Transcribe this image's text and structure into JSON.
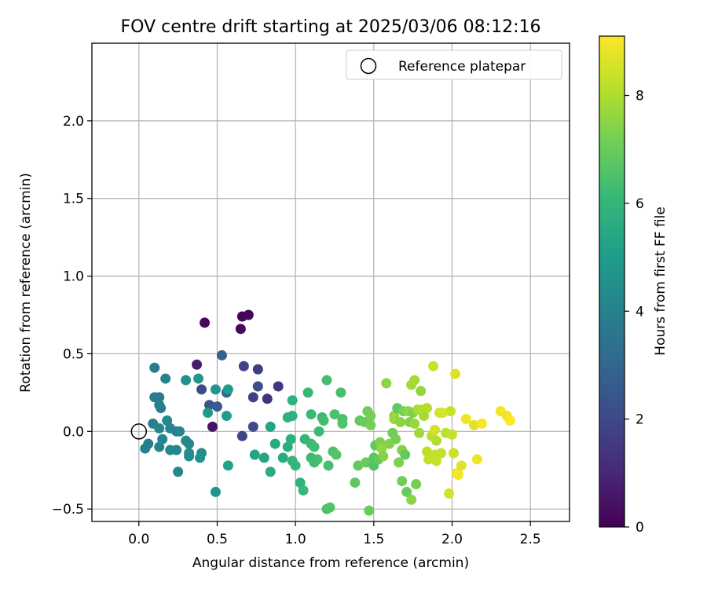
{
  "chart_data": {
    "type": "scatter",
    "title": "FOV centre drift starting at 2025/03/06 08:12:16",
    "xlabel": "Angular distance from reference (arcmin)",
    "ylabel": "Rotation from reference (arcmin)",
    "xlim": [
      -0.3,
      2.75
    ],
    "ylim": [
      -0.58,
      2.5
    ],
    "xticks": [
      0.0,
      0.5,
      1.0,
      1.5,
      2.0,
      2.5
    ],
    "xtick_labels": [
      "0.0",
      "0.5",
      "1.0",
      "1.5",
      "2.0",
      "2.5"
    ],
    "yticks": [
      -0.5,
      0.0,
      0.5,
      1.0,
      1.5,
      2.0
    ],
    "ytick_labels": [
      "−0.5",
      "0.0",
      "0.5",
      "1.0",
      "1.5",
      "2.0"
    ],
    "grid": true,
    "legend": {
      "position": "top-right",
      "entries": [
        "Reference platepar"
      ]
    },
    "reference": {
      "x": 0.0,
      "y": 0.0,
      "label": "Reference platepar"
    },
    "colorbar": {
      "label": "Hours from first FF file",
      "colormap": "viridis",
      "range": [
        0,
        9.1
      ],
      "ticks": [
        0,
        2,
        4,
        6,
        8
      ],
      "tick_labels": [
        "0",
        "2",
        "4",
        "6",
        "8"
      ]
    },
    "points": [
      {
        "x": 0.42,
        "y": 0.7,
        "h": 0.15
      },
      {
        "x": 0.66,
        "y": 0.74,
        "h": 0.1
      },
      {
        "x": 0.7,
        "y": 0.75,
        "h": 0.1
      },
      {
        "x": 0.65,
        "y": 0.66,
        "h": 0.2
      },
      {
        "x": 0.47,
        "y": 0.03,
        "h": 0.5
      },
      {
        "x": 0.37,
        "y": 0.43,
        "h": 0.7
      },
      {
        "x": 0.76,
        "y": 0.4,
        "h": 1.6
      },
      {
        "x": 0.67,
        "y": 0.42,
        "h": 1.8
      },
      {
        "x": 0.89,
        "y": 0.29,
        "h": 1.5
      },
      {
        "x": 0.82,
        "y": 0.21,
        "h": 1.3
      },
      {
        "x": 0.73,
        "y": 0.22,
        "h": 1.7
      },
      {
        "x": 0.76,
        "y": 0.29,
        "h": 2.2
      },
      {
        "x": 0.4,
        "y": 0.27,
        "h": 2.0
      },
      {
        "x": 0.45,
        "y": 0.17,
        "h": 2.4
      },
      {
        "x": 0.5,
        "y": 0.16,
        "h": 2.6
      },
      {
        "x": 0.66,
        "y": -0.03,
        "h": 1.9
      },
      {
        "x": 0.73,
        "y": 0.03,
        "h": 2.1
      },
      {
        "x": 0.53,
        "y": 0.49,
        "h": 2.8
      },
      {
        "x": 0.56,
        "y": 0.25,
        "h": 3.0
      },
      {
        "x": 0.1,
        "y": 0.41,
        "h": 3.8
      },
      {
        "x": 0.1,
        "y": 0.22,
        "h": 3.9
      },
      {
        "x": 0.13,
        "y": 0.22,
        "h": 3.7
      },
      {
        "x": 0.13,
        "y": 0.17,
        "h": 4.0
      },
      {
        "x": 0.14,
        "y": 0.15,
        "h": 3.9
      },
      {
        "x": 0.17,
        "y": 0.34,
        "h": 4.1
      },
      {
        "x": 0.09,
        "y": 0.05,
        "h": 4.0
      },
      {
        "x": 0.13,
        "y": 0.02,
        "h": 4.2
      },
      {
        "x": 0.18,
        "y": 0.07,
        "h": 4.3
      },
      {
        "x": 0.2,
        "y": 0.02,
        "h": 4.1
      },
      {
        "x": 0.24,
        "y": 0.0,
        "h": 4.0
      },
      {
        "x": 0.26,
        "y": 0.0,
        "h": 4.2
      },
      {
        "x": 0.06,
        "y": -0.08,
        "h": 3.9
      },
      {
        "x": 0.04,
        "y": -0.11,
        "h": 4.0
      },
      {
        "x": 0.13,
        "y": -0.1,
        "h": 4.1
      },
      {
        "x": 0.15,
        "y": -0.05,
        "h": 4.2
      },
      {
        "x": 0.2,
        "y": -0.12,
        "h": 4.3
      },
      {
        "x": 0.24,
        "y": -0.12,
        "h": 4.2
      },
      {
        "x": 0.3,
        "y": -0.06,
        "h": 4.4
      },
      {
        "x": 0.32,
        "y": -0.08,
        "h": 4.3
      },
      {
        "x": 0.32,
        "y": -0.14,
        "h": 4.5
      },
      {
        "x": 0.32,
        "y": -0.16,
        "h": 4.4
      },
      {
        "x": 0.25,
        "y": -0.26,
        "h": 4.2
      },
      {
        "x": 0.4,
        "y": -0.14,
        "h": 4.5
      },
      {
        "x": 0.39,
        "y": -0.17,
        "h": 4.6
      },
      {
        "x": 0.3,
        "y": 0.33,
        "h": 4.6
      },
      {
        "x": 0.38,
        "y": 0.34,
        "h": 4.8
      },
      {
        "x": 0.49,
        "y": 0.27,
        "h": 4.8
      },
      {
        "x": 0.57,
        "y": 0.27,
        "h": 5.0
      },
      {
        "x": 0.44,
        "y": 0.12,
        "h": 4.9
      },
      {
        "x": 0.56,
        "y": 0.1,
        "h": 5.1
      },
      {
        "x": 0.49,
        "y": -0.39,
        "h": 4.7
      },
      {
        "x": 0.57,
        "y": -0.22,
        "h": 5.2
      },
      {
        "x": 0.74,
        "y": -0.15,
        "h": 5.3
      },
      {
        "x": 0.8,
        "y": -0.17,
        "h": 5.4
      },
      {
        "x": 0.84,
        "y": 0.03,
        "h": 5.3
      },
      {
        "x": 0.87,
        "y": -0.08,
        "h": 5.5
      },
      {
        "x": 0.84,
        "y": -0.26,
        "h": 5.6
      },
      {
        "x": 0.92,
        "y": -0.17,
        "h": 5.6
      },
      {
        "x": 0.95,
        "y": -0.1,
        "h": 5.7
      },
      {
        "x": 0.97,
        "y": -0.05,
        "h": 5.8
      },
      {
        "x": 0.98,
        "y": 0.2,
        "h": 5.8
      },
      {
        "x": 0.95,
        "y": 0.09,
        "h": 5.9
      },
      {
        "x": 0.98,
        "y": 0.1,
        "h": 5.8
      },
      {
        "x": 0.98,
        "y": -0.19,
        "h": 6.0
      },
      {
        "x": 1.0,
        "y": -0.22,
        "h": 6.0
      },
      {
        "x": 1.03,
        "y": -0.33,
        "h": 5.9
      },
      {
        "x": 1.05,
        "y": -0.38,
        "h": 6.1
      },
      {
        "x": 1.06,
        "y": -0.05,
        "h": 6.0
      },
      {
        "x": 1.08,
        "y": 0.25,
        "h": 6.1
      },
      {
        "x": 1.1,
        "y": 0.11,
        "h": 6.2
      },
      {
        "x": 1.1,
        "y": -0.08,
        "h": 6.2
      },
      {
        "x": 1.12,
        "y": -0.1,
        "h": 6.3
      },
      {
        "x": 1.1,
        "y": -0.17,
        "h": 6.2
      },
      {
        "x": 1.12,
        "y": -0.2,
        "h": 6.3
      },
      {
        "x": 1.14,
        "y": -0.18,
        "h": 6.4
      },
      {
        "x": 1.15,
        "y": 0.0,
        "h": 6.2
      },
      {
        "x": 1.17,
        "y": 0.09,
        "h": 6.1
      },
      {
        "x": 1.18,
        "y": 0.07,
        "h": 6.3
      },
      {
        "x": 1.2,
        "y": 0.33,
        "h": 6.4
      },
      {
        "x": 1.21,
        "y": -0.22,
        "h": 6.4
      },
      {
        "x": 1.2,
        "y": -0.5,
        "h": 6.5
      },
      {
        "x": 1.22,
        "y": -0.49,
        "h": 6.6
      },
      {
        "x": 1.24,
        "y": -0.13,
        "h": 6.5
      },
      {
        "x": 1.25,
        "y": 0.11,
        "h": 6.5
      },
      {
        "x": 1.26,
        "y": -0.15,
        "h": 6.6
      },
      {
        "x": 1.29,
        "y": 0.25,
        "h": 6.4
      },
      {
        "x": 1.3,
        "y": 0.08,
        "h": 6.5
      },
      {
        "x": 1.3,
        "y": 0.05,
        "h": 6.6
      },
      {
        "x": 1.38,
        "y": -0.33,
        "h": 6.8
      },
      {
        "x": 1.4,
        "y": -0.22,
        "h": 6.9
      },
      {
        "x": 1.41,
        "y": 0.07,
        "h": 6.9
      },
      {
        "x": 1.44,
        "y": 0.06,
        "h": 7.0
      },
      {
        "x": 1.45,
        "y": -0.2,
        "h": 7.0
      },
      {
        "x": 1.46,
        "y": 0.13,
        "h": 7.1
      },
      {
        "x": 1.47,
        "y": -0.51,
        "h": 7.0
      },
      {
        "x": 1.48,
        "y": 0.04,
        "h": 7.2
      },
      {
        "x": 1.48,
        "y": 0.1,
        "h": 7.2
      },
      {
        "x": 1.5,
        "y": -0.17,
        "h": 6.7
      },
      {
        "x": 1.5,
        "y": -0.22,
        "h": 6.6
      },
      {
        "x": 1.51,
        "y": -0.09,
        "h": 6.8
      },
      {
        "x": 1.53,
        "y": -0.18,
        "h": 6.9
      },
      {
        "x": 1.54,
        "y": -0.07,
        "h": 7.3
      },
      {
        "x": 1.55,
        "y": -0.11,
        "h": 7.6
      },
      {
        "x": 1.56,
        "y": -0.16,
        "h": 7.4
      },
      {
        "x": 1.58,
        "y": 0.31,
        "h": 7.5
      },
      {
        "x": 1.6,
        "y": -0.08,
        "h": 7.4
      },
      {
        "x": 1.62,
        "y": -0.01,
        "h": 7.1
      },
      {
        "x": 1.63,
        "y": 0.1,
        "h": 7.6
      },
      {
        "x": 1.63,
        "y": 0.08,
        "h": 7.7
      },
      {
        "x": 1.64,
        "y": -0.05,
        "h": 7.2
      },
      {
        "x": 1.65,
        "y": 0.15,
        "h": 6.8
      },
      {
        "x": 1.66,
        "y": -0.2,
        "h": 7.3
      },
      {
        "x": 1.67,
        "y": 0.06,
        "h": 7.5
      },
      {
        "x": 1.68,
        "y": -0.12,
        "h": 7.4
      },
      {
        "x": 1.68,
        "y": -0.32,
        "h": 7.1
      },
      {
        "x": 1.69,
        "y": 0.13,
        "h": 7.2
      },
      {
        "x": 1.7,
        "y": -0.15,
        "h": 6.9
      },
      {
        "x": 1.71,
        "y": -0.39,
        "h": 7.0
      },
      {
        "x": 1.72,
        "y": 0.13,
        "h": 7.6
      },
      {
        "x": 1.73,
        "y": 0.06,
        "h": 7.4
      },
      {
        "x": 1.74,
        "y": -0.44,
        "h": 7.5
      },
      {
        "x": 1.74,
        "y": 0.3,
        "h": 7.8
      },
      {
        "x": 1.75,
        "y": 0.12,
        "h": 7.3
      },
      {
        "x": 1.76,
        "y": 0.33,
        "h": 7.9
      },
      {
        "x": 1.76,
        "y": 0.05,
        "h": 7.7
      },
      {
        "x": 1.77,
        "y": -0.34,
        "h": 7.2
      },
      {
        "x": 1.78,
        "y": 0.14,
        "h": 7.9
      },
      {
        "x": 1.79,
        "y": -0.01,
        "h": 7.8
      },
      {
        "x": 1.8,
        "y": 0.26,
        "h": 7.6
      },
      {
        "x": 1.81,
        "y": 0.14,
        "h": 8.0
      },
      {
        "x": 1.82,
        "y": 0.1,
        "h": 7.9
      },
      {
        "x": 1.84,
        "y": 0.15,
        "h": 8.1
      },
      {
        "x": 1.84,
        "y": -0.13,
        "h": 8.2
      },
      {
        "x": 1.85,
        "y": -0.18,
        "h": 8.3
      },
      {
        "x": 1.87,
        "y": -0.03,
        "h": 8.2
      },
      {
        "x": 1.88,
        "y": 0.42,
        "h": 8.4
      },
      {
        "x": 1.89,
        "y": 0.01,
        "h": 8.5
      },
      {
        "x": 1.89,
        "y": -0.15,
        "h": 8.3
      },
      {
        "x": 1.9,
        "y": -0.19,
        "h": 8.4
      },
      {
        "x": 1.9,
        "y": -0.06,
        "h": 8.1
      },
      {
        "x": 1.92,
        "y": 0.12,
        "h": 8.5
      },
      {
        "x": 1.93,
        "y": -0.14,
        "h": 8.3
      },
      {
        "x": 1.94,
        "y": 0.12,
        "h": 8.6
      },
      {
        "x": 1.96,
        "y": -0.01,
        "h": 8.2
      },
      {
        "x": 1.98,
        "y": -0.4,
        "h": 8.5
      },
      {
        "x": 1.99,
        "y": 0.13,
        "h": 8.4
      },
      {
        "x": 2.0,
        "y": -0.02,
        "h": 8.3
      },
      {
        "x": 2.01,
        "y": -0.14,
        "h": 8.4
      },
      {
        "x": 2.02,
        "y": 0.37,
        "h": 8.6
      },
      {
        "x": 2.03,
        "y": -0.27,
        "h": 8.8
      },
      {
        "x": 2.04,
        "y": -0.28,
        "h": 9.0
      },
      {
        "x": 2.06,
        "y": -0.22,
        "h": 8.7
      },
      {
        "x": 2.09,
        "y": 0.08,
        "h": 8.9
      },
      {
        "x": 2.14,
        "y": 0.04,
        "h": 8.7
      },
      {
        "x": 2.16,
        "y": -0.18,
        "h": 8.9
      },
      {
        "x": 2.19,
        "y": 0.05,
        "h": 9.0
      },
      {
        "x": 2.31,
        "y": 0.13,
        "h": 9.0
      },
      {
        "x": 2.35,
        "y": 0.1,
        "h": 8.9
      },
      {
        "x": 2.37,
        "y": 0.07,
        "h": 9.1
      }
    ]
  }
}
